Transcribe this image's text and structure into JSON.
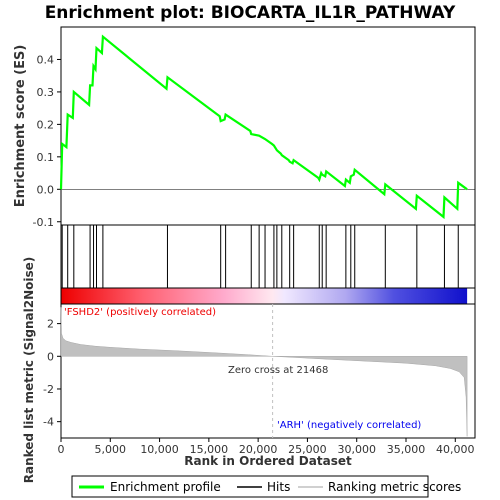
{
  "title": "Enrichment plot: BIOCARTA_IL1R_PATHWAY",
  "colors": {
    "enrichment_line": "#00ff00",
    "hits": "#000000",
    "metric_fill": "#c0c0c0",
    "positive": "#ff0000",
    "negative": "#0000ff",
    "zero_cross_line": "#c0c0c0"
  },
  "annotations": {
    "positive_label": "'FSHD2' (positively correlated)",
    "negative_label": "'ARH' (negatively correlated)",
    "zero_cross": "Zero cross at 21468"
  },
  "legend": {
    "items": [
      {
        "label": "Enrichment profile",
        "color": "#00ff00"
      },
      {
        "label": "Hits",
        "color": "#000000"
      },
      {
        "label": "Ranking metric scores",
        "color": "#c0c0c0"
      }
    ]
  },
  "chart_data": [
    {
      "type": "line",
      "ylabel": "Enrichment score (ES)",
      "xlim": [
        0,
        42000
      ],
      "ylim": [
        -0.11,
        0.5
      ],
      "yticks": [
        -0.1,
        0.0,
        0.1,
        0.2,
        0.3,
        0.4
      ],
      "ytick_labels": [
        "-0.1",
        "0.0",
        "0.1",
        "0.2",
        "0.3",
        "0.4"
      ],
      "grid": false,
      "series": [
        {
          "name": "Enrichment profile",
          "x": [
            0,
            120,
            550,
            680,
            1200,
            1300,
            2850,
            2950,
            3200,
            3300,
            3500,
            3600,
            4150,
            4250,
            10700,
            10800,
            16100,
            16200,
            16600,
            16700,
            19200,
            19300,
            20100,
            20700,
            21400,
            21600,
            21800,
            21900,
            22300,
            22400,
            23100,
            23200,
            23500,
            23600,
            26100,
            26200,
            26400,
            26500,
            26800,
            26900,
            28800,
            28900,
            29300,
            29400,
            29700,
            29800,
            32800,
            32900,
            36000,
            36100,
            38800,
            38900,
            40200,
            40300,
            41200
          ],
          "y": [
            0.0,
            0.14,
            0.13,
            0.23,
            0.22,
            0.3,
            0.26,
            0.32,
            0.32,
            0.38,
            0.37,
            0.435,
            0.42,
            0.47,
            0.31,
            0.345,
            0.225,
            0.21,
            0.215,
            0.23,
            0.18,
            0.17,
            0.165,
            0.155,
            0.14,
            0.135,
            0.125,
            0.12,
            0.11,
            0.105,
            0.09,
            0.085,
            0.08,
            0.09,
            0.035,
            0.03,
            0.05,
            0.045,
            0.04,
            0.055,
            0.01,
            0.03,
            0.02,
            0.04,
            0.045,
            0.06,
            -0.015,
            0.015,
            -0.06,
            -0.02,
            -0.085,
            -0.025,
            -0.06,
            0.02,
            0.0
          ]
        }
      ]
    },
    {
      "type": "scatter",
      "name": "Hits",
      "x": [
        120,
        680,
        1300,
        2950,
        3300,
        3600,
        4250,
        10800,
        16200,
        16700,
        19300,
        20100,
        20700,
        21600,
        21900,
        22400,
        23200,
        23600,
        26200,
        26500,
        26900,
        28900,
        29400,
        29800,
        32900,
        36100,
        38900,
        40300
      ]
    },
    {
      "type": "area",
      "ylabel": "Ranked list metric (Signal2Noise)",
      "xlabel": "Rank in Ordered Dataset",
      "xlim": [
        0,
        42000
      ],
      "ylim": [
        -5.0,
        3.2
      ],
      "xticks": [
        0,
        5000,
        10000,
        15000,
        20000,
        25000,
        30000,
        35000,
        40000
      ],
      "xtick_labels": [
        "0",
        "5,000",
        "10,000",
        "15,000",
        "20,000",
        "25,000",
        "30,000",
        "35,000",
        "40,000"
      ],
      "yticks": [
        2,
        0,
        -2,
        -4
      ],
      "ytick_labels": [
        "2",
        "0",
        "-2",
        "-4"
      ],
      "zero_cross": 21468,
      "series": [
        {
          "name": "Ranking metric scores",
          "x": [
            0,
            50,
            200,
            500,
            1000,
            2000,
            3500,
            5000,
            8000,
            12000,
            16000,
            19000,
            21468,
            24000,
            27000,
            31000,
            35000,
            38000,
            39500,
            40400,
            40900,
            41100,
            41200
          ],
          "y": [
            3.0,
            1.4,
            1.1,
            0.95,
            0.85,
            0.72,
            0.62,
            0.55,
            0.44,
            0.33,
            0.2,
            0.1,
            0.0,
            -0.08,
            -0.18,
            -0.3,
            -0.42,
            -0.58,
            -0.75,
            -0.95,
            -1.3,
            -2.5,
            -4.9
          ]
        }
      ]
    }
  ]
}
